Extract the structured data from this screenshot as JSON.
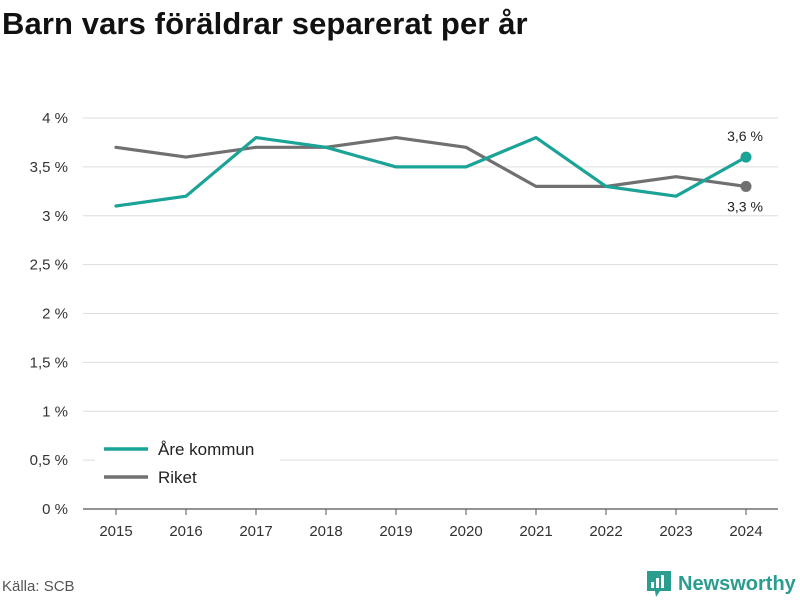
{
  "header": {
    "title": "Barn vars föräldrar separerat per år"
  },
  "footer": {
    "source": "Källa: SCB",
    "brand": "Newsworthy"
  },
  "colors": {
    "accent": "#1aa396",
    "riket": "#707070",
    "grid": "#dddddd",
    "brand": "#2a9d8f"
  },
  "chart_data": {
    "type": "line",
    "title": "Barn vars föräldrar separerat per år",
    "x": [
      2015,
      2016,
      2017,
      2018,
      2019,
      2020,
      2021,
      2022,
      2023,
      2024
    ],
    "ylim": [
      0,
      4
    ],
    "yticks": [
      0,
      0.5,
      1,
      1.5,
      2,
      2.5,
      3,
      3.5,
      4
    ],
    "ytick_labels": [
      "0 %",
      "0,5 %",
      "1 %",
      "1,5 %",
      "2 %",
      "2,5 %",
      "3 %",
      "3,5 %",
      "4 %"
    ],
    "grid": true,
    "legend": "bottom-left",
    "series": [
      {
        "name": "Åre kommun",
        "color": "#1aa396",
        "values": [
          3.1,
          3.2,
          3.8,
          3.7,
          3.5,
          3.5,
          3.8,
          3.3,
          3.2,
          3.6
        ],
        "end_label": "3,6 %"
      },
      {
        "name": "Riket",
        "color": "#707070",
        "values": [
          3.7,
          3.6,
          3.7,
          3.7,
          3.8,
          3.7,
          3.3,
          3.3,
          3.4,
          3.3
        ],
        "end_label": "3,3 %"
      }
    ]
  }
}
